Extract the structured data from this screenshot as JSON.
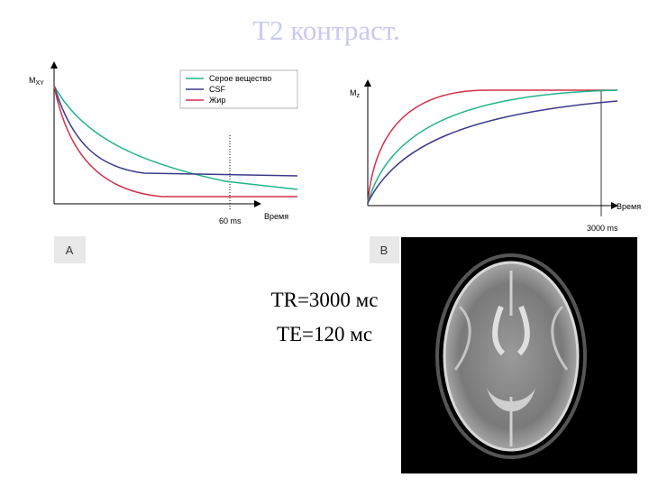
{
  "title": "T2 контраст.",
  "chart_a": {
    "y_label": "M",
    "y_label_sub": "XY",
    "legend": [
      "Серое вещество",
      "CSF",
      "Жир"
    ],
    "x_label": "Время",
    "marker": "60 ms",
    "panel": "A"
  },
  "chart_b": {
    "y_label": "M",
    "y_label_sub": "z",
    "x_label": "Время",
    "marker": "3000 ms",
    "panel": "B"
  },
  "params": [
    "TR=3000 мс",
    "TE=120 мс"
  ]
}
